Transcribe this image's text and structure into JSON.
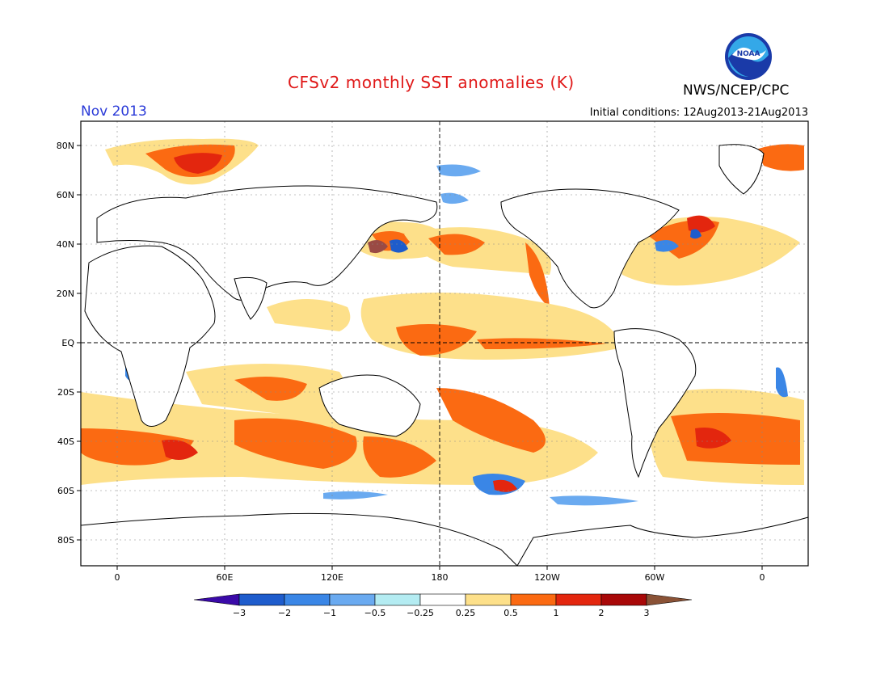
{
  "header": {
    "title": "CFSv2 monthly SST anomalies (K)",
    "agency": "NWS/NCEP/CPC",
    "month": "Nov 2013",
    "initial_conditions": "Initial conditions: 12Aug2013-21Aug2013",
    "logo_text": "NOAA"
  },
  "map": {
    "lat_labels": [
      "80N",
      "60N",
      "40N",
      "20N",
      "EQ",
      "20S",
      "40S",
      "60S",
      "80S"
    ],
    "lon_labels": [
      "0",
      "60E",
      "120E",
      "180",
      "120W",
      "60W",
      "0"
    ]
  },
  "colorbar": {
    "tick_labels": [
      "−3",
      "−2",
      "−1",
      "−0.5",
      "−0.25",
      "0.25",
      "0.5",
      "1",
      "2",
      "3"
    ],
    "colors": [
      "#3a0aa8",
      "#1e5ccc",
      "#3a86e6",
      "#6aaaf0",
      "#b4ecf2",
      "#ffffff",
      "#fde08a",
      "#fb6a12",
      "#e3260e",
      "#a80808",
      "#8a5236"
    ]
  },
  "colors": {
    "title": "#e01818",
    "month": "#2a3ad8"
  }
}
